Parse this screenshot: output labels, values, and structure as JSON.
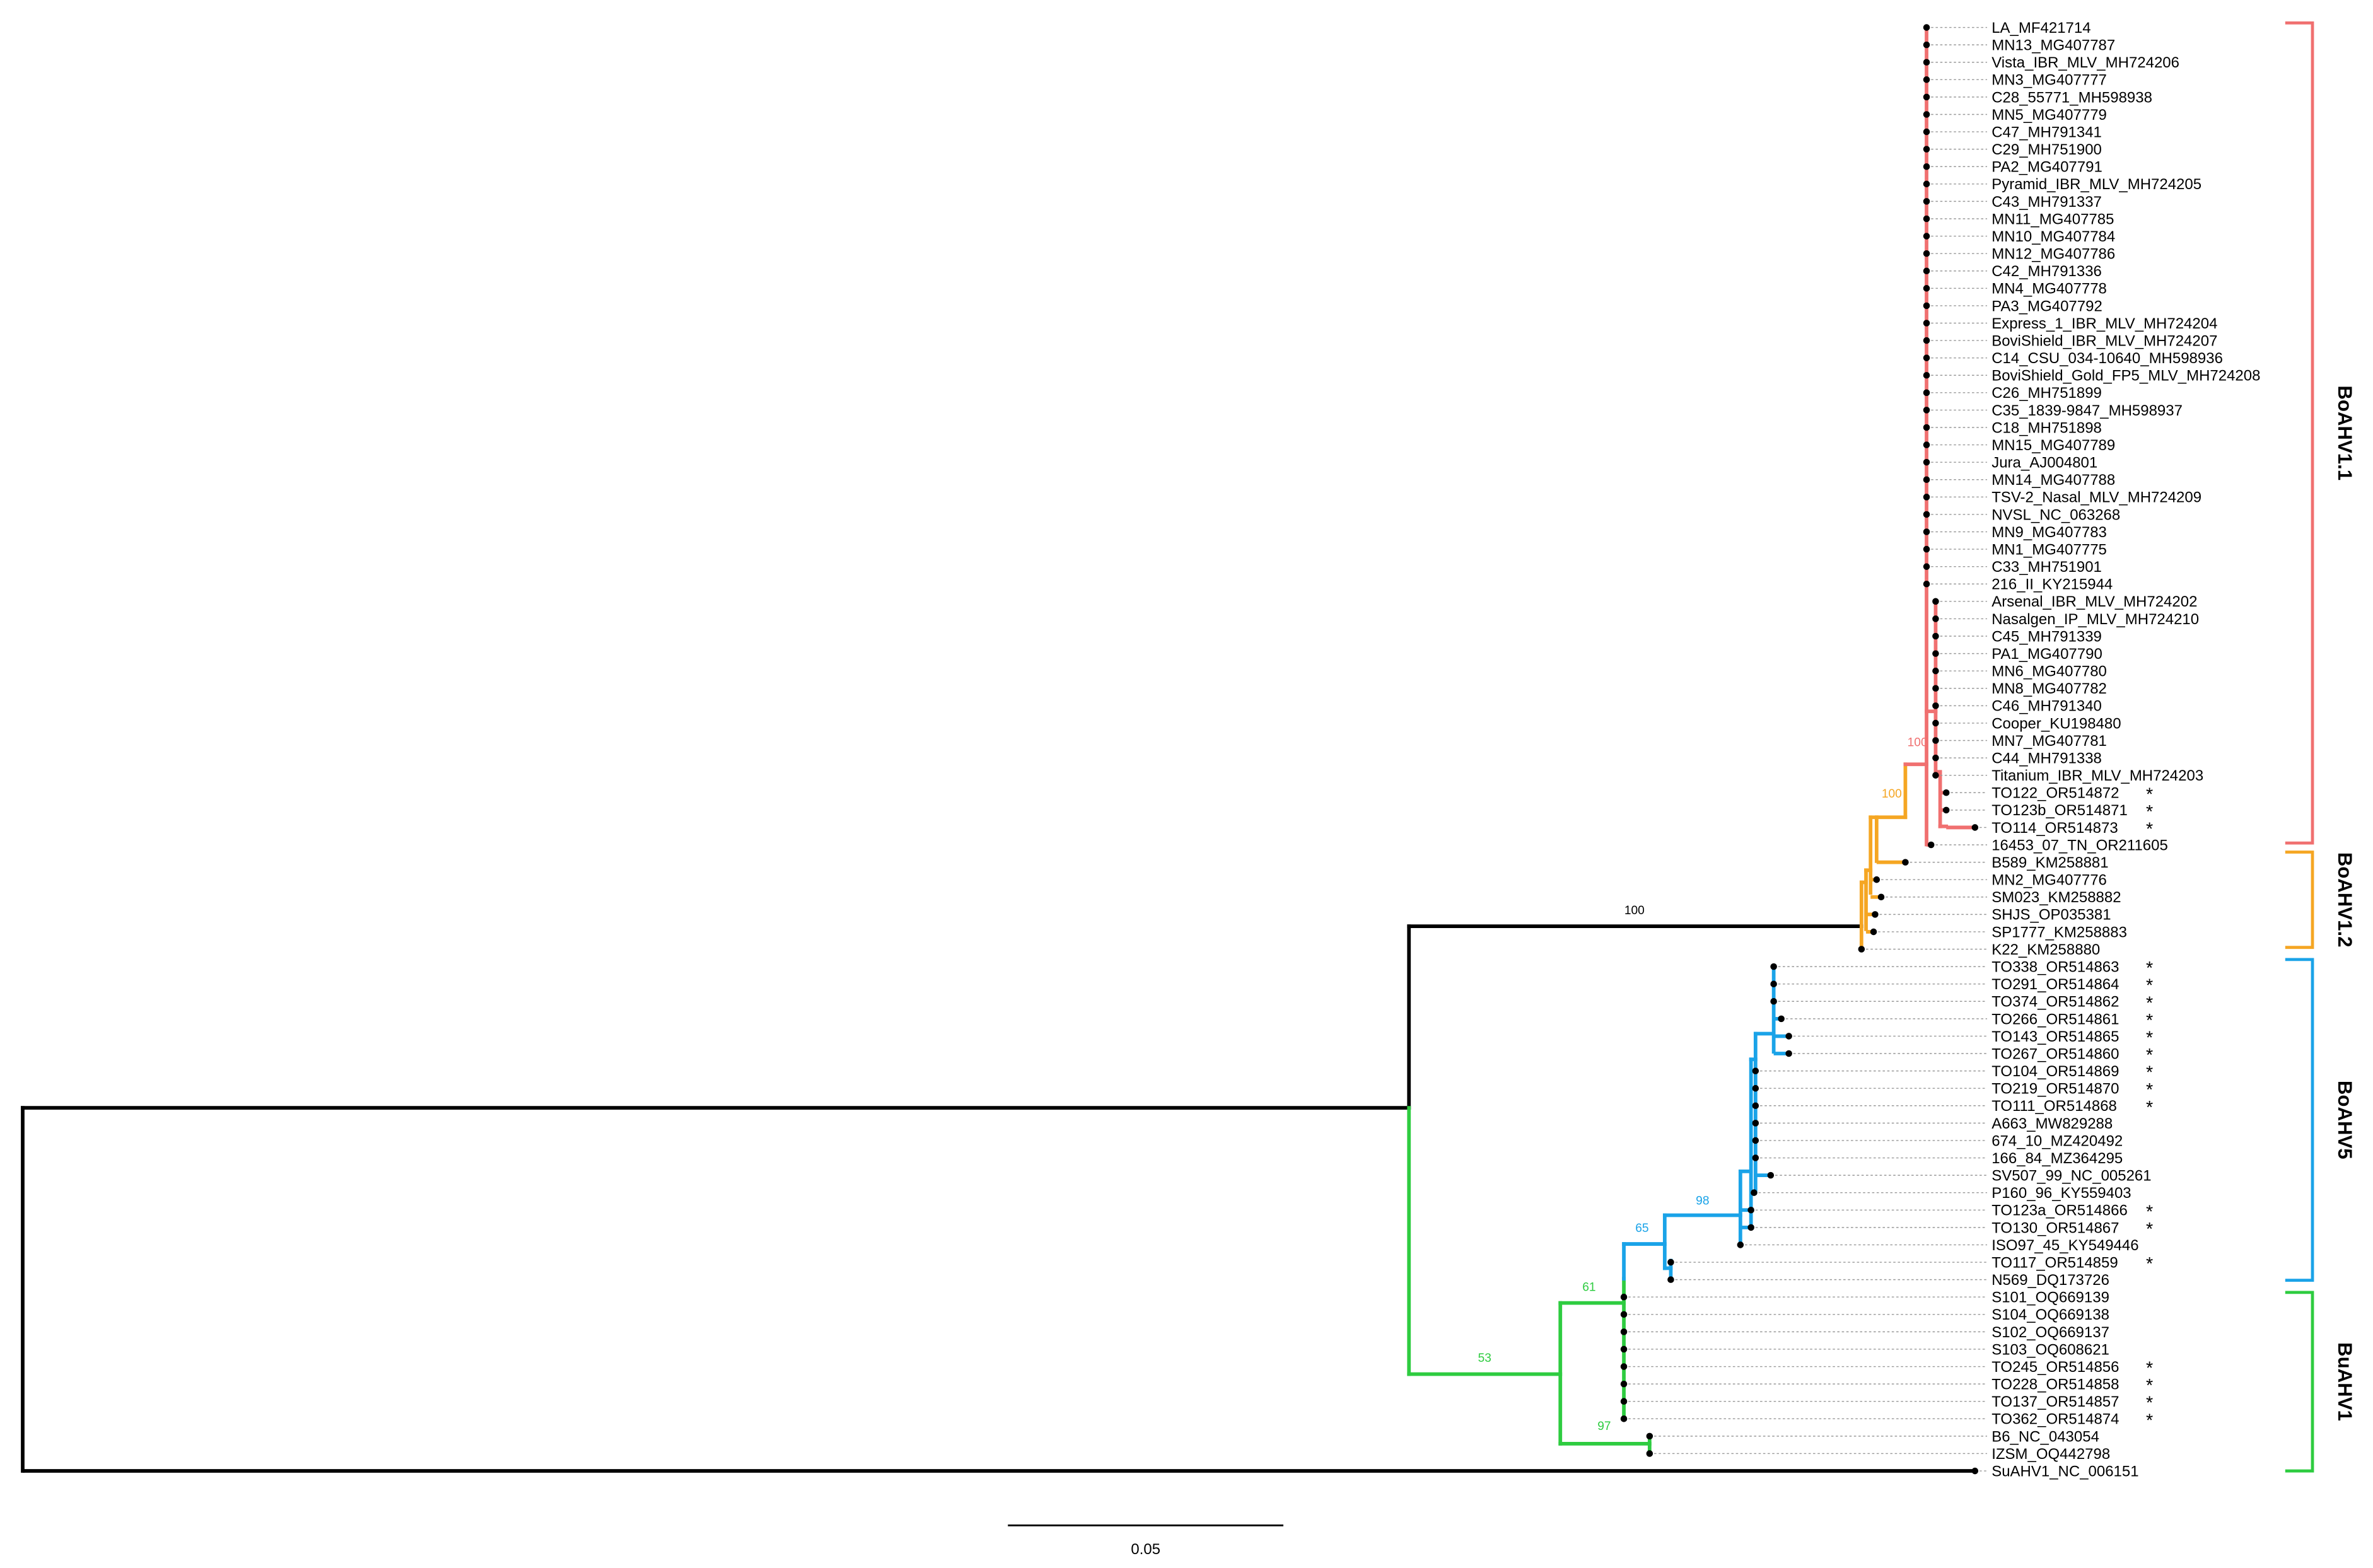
{
  "leaves": [
    {
      "label": "LA_MF421714"
    },
    {
      "label": "MN13_MG407787"
    },
    {
      "label": "Vista_IBR_MLV_MH724206"
    },
    {
      "label": "MN3_MG407777"
    },
    {
      "label": "C28_55771_MH598938"
    },
    {
      "label": "MN5_MG407779"
    },
    {
      "label": "C47_MH791341"
    },
    {
      "label": "C29_MH751900"
    },
    {
      "label": "PA2_MG407791"
    },
    {
      "label": "Pyramid_IBR_MLV_MH724205"
    },
    {
      "label": "C43_MH791337"
    },
    {
      "label": "MN11_MG407785"
    },
    {
      "label": "MN10_MG407784"
    },
    {
      "label": "MN12_MG407786"
    },
    {
      "label": "C42_MH791336"
    },
    {
      "label": "MN4_MG407778"
    },
    {
      "label": "PA3_MG407792"
    },
    {
      "label": "Express_1_IBR_MLV_MH724204"
    },
    {
      "label": "BoviShield_IBR_MLV_MH724207"
    },
    {
      "label": "C14_CSU_034-10640_MH598936"
    },
    {
      "label": "BoviShield_Gold_FP5_MLV_MH724208"
    },
    {
      "label": "C26_MH751899"
    },
    {
      "label": "C35_1839-9847_MH598937"
    },
    {
      "label": "C18_MH751898"
    },
    {
      "label": "MN15_MG407789"
    },
    {
      "label": "Jura_AJ004801"
    },
    {
      "label": "MN14_MG407788"
    },
    {
      "label": "TSV-2_Nasal_MLV_MH724209"
    },
    {
      "label": "NVSL_NC_063268"
    },
    {
      "label": "MN9_MG407783"
    },
    {
      "label": "MN1_MG407775"
    },
    {
      "label": "C33_MH751901"
    },
    {
      "label": "216_II_KY215944"
    },
    {
      "label": "Arsenal_IBR_MLV_MH724202"
    },
    {
      "label": "Nasalgen_IP_MLV_MH724210"
    },
    {
      "label": "C45_MH791339"
    },
    {
      "label": "PA1_MG407790"
    },
    {
      "label": "MN6_MG407780"
    },
    {
      "label": "MN8_MG407782"
    },
    {
      "label": "C46_MH791340"
    },
    {
      "label": "Cooper_KU198480"
    },
    {
      "label": "MN7_MG407781"
    },
    {
      "label": "C44_MH791338"
    },
    {
      "label": "Titanium_IBR_MLV_MH724203"
    },
    {
      "label": "TO122_OR514872",
      "note": "*"
    },
    {
      "label": "TO123b_OR514871",
      "note": "*"
    },
    {
      "label": "TO114_OR514873",
      "note": "*"
    },
    {
      "label": "16453_07_TN_OR211605"
    },
    {
      "label": "B589_KM258881"
    },
    {
      "label": "MN2_MG407776"
    },
    {
      "label": "SM023_KM258882"
    },
    {
      "label": "SHJS_OP035381"
    },
    {
      "label": "SP1777_KM258883"
    },
    {
      "label": "K22_KM258880"
    },
    {
      "label": "TO338_OR514863",
      "note": "*"
    },
    {
      "label": "TO291_OR514864",
      "note": "*"
    },
    {
      "label": "TO374_OR514862",
      "note": "*"
    },
    {
      "label": "TO266_OR514861",
      "note": "*"
    },
    {
      "label": "TO143_OR514865",
      "note": "*"
    },
    {
      "label": "TO267_OR514860",
      "note": "*"
    },
    {
      "label": "TO104_OR514869",
      "note": "*"
    },
    {
      "label": "TO219_OR514870",
      "note": "*"
    },
    {
      "label": "TO111_OR514868",
      "note": "*"
    },
    {
      "label": "A663_MW829288"
    },
    {
      "label": "674_10_MZ420492"
    },
    {
      "label": "166_84_MZ364295"
    },
    {
      "label": "SV507_99_NC_005261"
    },
    {
      "label": "P160_96_KY559403"
    },
    {
      "label": "TO123a_OR514866",
      "note": "*"
    },
    {
      "label": "TO130_OR514867",
      "note": "*"
    },
    {
      "label": "ISO97_45_KY549446"
    },
    {
      "label": "TO117_OR514859",
      "note": "*"
    },
    {
      "label": "N569_DQ173726"
    },
    {
      "label": "S101_OQ669139"
    },
    {
      "label": "S104_OQ669138"
    },
    {
      "label": "S102_OQ669137"
    },
    {
      "label": "S103_OQ608621"
    },
    {
      "label": "TO245_OR514856",
      "note": "*"
    },
    {
      "label": "TO228_OR514858",
      "note": "*"
    },
    {
      "label": "TO137_OR514857",
      "note": "*"
    },
    {
      "label": "TO362_OR514874",
      "note": "*"
    },
    {
      "label": "B6_NC_043054"
    },
    {
      "label": "IZSM_OQ442798"
    },
    {
      "label": "SuAHV1_NC_006151"
    }
  ],
  "support_values": [
    "100",
    "53",
    "61",
    "97",
    "65",
    "98",
    "100",
    "100"
  ],
  "clades": [
    "BoAHV1.1",
    "BoAHV1.2",
    "BoAHV5",
    "BuAHV1"
  ],
  "scale_bar": {
    "label": "0.05"
  }
}
